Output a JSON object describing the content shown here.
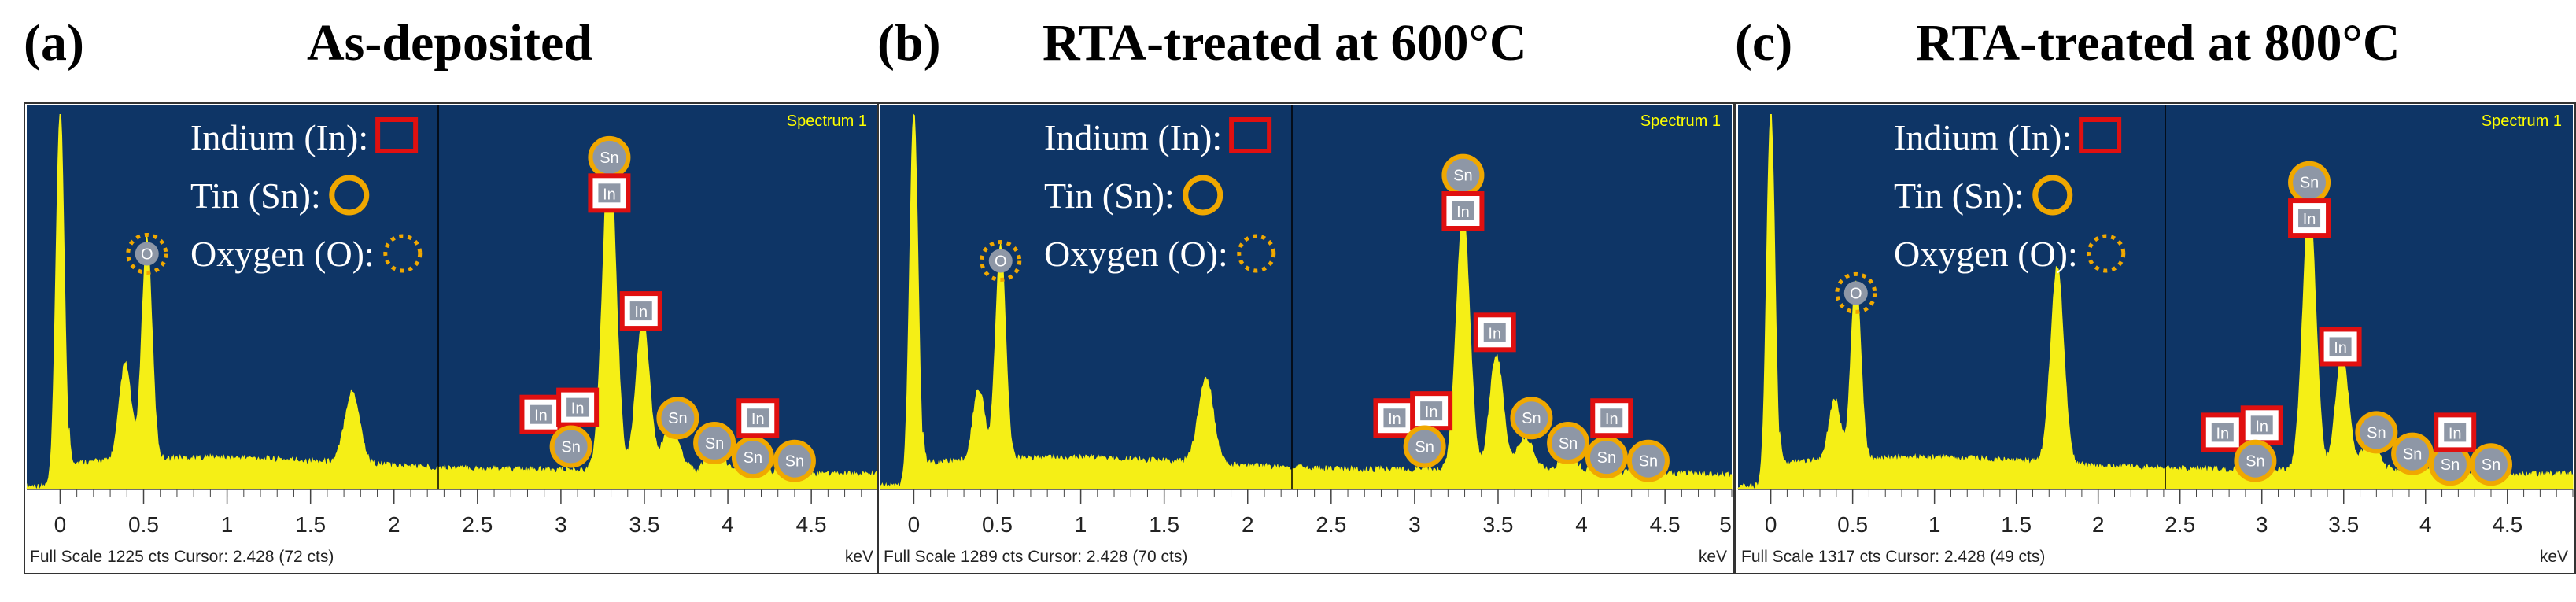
{
  "legend": {
    "indium": "Indium (In):",
    "tin": "Tin (Sn):",
    "oxygen": "Oxygen (O):"
  },
  "colors": {
    "plot_background": "#0e3566",
    "spectrum_fill": "#f5ef16",
    "indium_marker": "#e01010",
    "tin_marker": "#f0a800",
    "oxygen_marker": "#f0a800",
    "spectrum_label": "#ffff00",
    "cursor_line": "#000000"
  },
  "chart_data": [
    {
      "type": "area",
      "panel_label": "(a)",
      "title": "As-deposited",
      "spectrum_name": "Spectrum 1",
      "xlabel": "keV",
      "xlim": [
        -0.2,
        4.9
      ],
      "x_ticks": [
        "0",
        "0.5",
        "1",
        "1.5",
        "2",
        "2.5",
        "3",
        "3.5",
        "4",
        "4.5"
      ],
      "x_tick_values": [
        0,
        0.5,
        1,
        1.5,
        2,
        2.5,
        3,
        3.5,
        4,
        4.5
      ],
      "cursor_keV": 2.428,
      "status": "Full Scale 1225 cts Cursor: 2.428  (72 cts)",
      "full_scale_cts": 1225,
      "cursor_cts": 72,
      "peaks": [
        {
          "x": 0.0,
          "rel_height": 1.05,
          "width": 0.025
        },
        {
          "x": 0.39,
          "rel_height": 0.27,
          "width": 0.035
        },
        {
          "x": 0.52,
          "rel_height": 0.62,
          "width": 0.03
        },
        {
          "x": 1.75,
          "rel_height": 0.2,
          "width": 0.045
        },
        {
          "x": 3.29,
          "rel_height": 0.9,
          "width": 0.04
        },
        {
          "x": 3.49,
          "rel_height": 0.42,
          "width": 0.04
        },
        {
          "x": 3.66,
          "rel_height": 0.12,
          "width": 0.05
        },
        {
          "x": 3.92,
          "rel_height": 0.08,
          "width": 0.05
        },
        {
          "x": 4.13,
          "rel_height": 0.07,
          "width": 0.05
        },
        {
          "x": 4.38,
          "rel_height": 0.05,
          "width": 0.05
        }
      ],
      "markers": [
        {
          "el": "Sn",
          "kind": "circle",
          "x": 3.29,
          "rel_y": 0.93
        },
        {
          "el": "In",
          "kind": "square",
          "x": 3.29,
          "rel_y": 0.83
        },
        {
          "el": "In",
          "kind": "square",
          "x": 3.48,
          "rel_y": 0.5
        },
        {
          "el": "O",
          "kind": "dashed",
          "x": 0.52,
          "rel_y": 0.66
        },
        {
          "el": "In",
          "kind": "square",
          "x": 2.88,
          "rel_y": 0.21
        },
        {
          "el": "In",
          "kind": "square",
          "x": 3.1,
          "rel_y": 0.23
        },
        {
          "el": "Sn",
          "kind": "circle",
          "x": 3.06,
          "rel_y": 0.12
        },
        {
          "el": "Sn",
          "kind": "circle",
          "x": 3.7,
          "rel_y": 0.2
        },
        {
          "el": "Sn",
          "kind": "circle",
          "x": 3.92,
          "rel_y": 0.13
        },
        {
          "el": "Sn",
          "kind": "circle",
          "x": 4.15,
          "rel_y": 0.09
        },
        {
          "el": "In",
          "kind": "square",
          "x": 4.18,
          "rel_y": 0.2
        },
        {
          "el": "Sn",
          "kind": "circle",
          "x": 4.4,
          "rel_y": 0.08
        }
      ]
    },
    {
      "type": "area",
      "panel_label": "(b)",
      "title": "RTA-treated at 600°C",
      "spectrum_name": "Spectrum 1",
      "xlabel": "keV",
      "xlim": [
        -0.2,
        4.9
      ],
      "x_ticks": [
        "0",
        "0.5",
        "1",
        "1.5",
        "2",
        "2.5",
        "3",
        "3.5",
        "4",
        "4.5",
        "5"
      ],
      "x_tick_values": [
        0,
        0.5,
        1,
        1.5,
        2,
        2.5,
        3,
        3.5,
        4,
        4.5,
        5
      ],
      "cursor_keV": 2.428,
      "status": "Full Scale 1289 cts Cursor: 2.428  (70 cts)",
      "full_scale_cts": 1289,
      "cursor_cts": 70,
      "peaks": [
        {
          "x": 0.0,
          "rel_height": 1.05,
          "width": 0.025
        },
        {
          "x": 0.39,
          "rel_height": 0.2,
          "width": 0.035
        },
        {
          "x": 0.52,
          "rel_height": 0.6,
          "width": 0.03
        },
        {
          "x": 1.75,
          "rel_height": 0.24,
          "width": 0.045
        },
        {
          "x": 3.29,
          "rel_height": 0.72,
          "width": 0.04
        },
        {
          "x": 3.49,
          "rel_height": 0.32,
          "width": 0.04
        },
        {
          "x": 3.66,
          "rel_height": 0.09,
          "width": 0.05
        },
        {
          "x": 3.92,
          "rel_height": 0.06,
          "width": 0.05
        },
        {
          "x": 4.13,
          "rel_height": 0.05,
          "width": 0.05
        },
        {
          "x": 4.38,
          "rel_height": 0.04,
          "width": 0.05
        }
      ],
      "markers": [
        {
          "el": "Sn",
          "kind": "circle",
          "x": 3.29,
          "rel_y": 0.88
        },
        {
          "el": "In",
          "kind": "square",
          "x": 3.29,
          "rel_y": 0.78
        },
        {
          "el": "In",
          "kind": "square",
          "x": 3.48,
          "rel_y": 0.44
        },
        {
          "el": "O",
          "kind": "dashed",
          "x": 0.52,
          "rel_y": 0.64
        },
        {
          "el": "In",
          "kind": "square",
          "x": 2.88,
          "rel_y": 0.2
        },
        {
          "el": "In",
          "kind": "square",
          "x": 3.1,
          "rel_y": 0.22
        },
        {
          "el": "Sn",
          "kind": "circle",
          "x": 3.06,
          "rel_y": 0.12
        },
        {
          "el": "Sn",
          "kind": "circle",
          "x": 3.7,
          "rel_y": 0.2
        },
        {
          "el": "Sn",
          "kind": "circle",
          "x": 3.92,
          "rel_y": 0.13
        },
        {
          "el": "Sn",
          "kind": "circle",
          "x": 4.15,
          "rel_y": 0.09
        },
        {
          "el": "In",
          "kind": "square",
          "x": 4.18,
          "rel_y": 0.2
        },
        {
          "el": "Sn",
          "kind": "circle",
          "x": 4.4,
          "rel_y": 0.08
        }
      ]
    },
    {
      "type": "area",
      "panel_label": "(c)",
      "title": "RTA-treated at 800°C",
      "spectrum_name": "Spectrum 1",
      "xlabel": "keV",
      "xlim": [
        -0.2,
        4.9
      ],
      "x_ticks": [
        "0",
        "0.5",
        "1",
        "1.5",
        "2",
        "2.5",
        "3",
        "3.5",
        "4",
        "4.5"
      ],
      "x_tick_values": [
        0,
        0.5,
        1,
        1.5,
        2,
        2.5,
        3,
        3.5,
        4,
        4.5
      ],
      "cursor_keV": 2.428,
      "status": "Full Scale 1317 cts Cursor: 2.428  (49 cts)",
      "full_scale_cts": 1317,
      "cursor_cts": 49,
      "peaks": [
        {
          "x": 0.0,
          "rel_height": 1.05,
          "width": 0.025
        },
        {
          "x": 0.39,
          "rel_height": 0.17,
          "width": 0.035
        },
        {
          "x": 0.52,
          "rel_height": 0.5,
          "width": 0.03
        },
        {
          "x": 1.75,
          "rel_height": 0.55,
          "width": 0.04
        },
        {
          "x": 3.29,
          "rel_height": 0.75,
          "width": 0.04
        },
        {
          "x": 3.49,
          "rel_height": 0.32,
          "width": 0.04
        },
        {
          "x": 3.66,
          "rel_height": 0.08,
          "width": 0.05
        },
        {
          "x": 3.92,
          "rel_height": 0.05,
          "width": 0.05
        },
        {
          "x": 4.13,
          "rel_height": 0.04,
          "width": 0.05
        },
        {
          "x": 4.38,
          "rel_height": 0.03,
          "width": 0.05
        }
      ],
      "markers": [
        {
          "el": "Sn",
          "kind": "circle",
          "x": 3.29,
          "rel_y": 0.86
        },
        {
          "el": "In",
          "kind": "square",
          "x": 3.29,
          "rel_y": 0.76
        },
        {
          "el": "In",
          "kind": "square",
          "x": 3.48,
          "rel_y": 0.4
        },
        {
          "el": "O",
          "kind": "dashed",
          "x": 0.52,
          "rel_y": 0.55
        },
        {
          "el": "In",
          "kind": "square",
          "x": 2.76,
          "rel_y": 0.16
        },
        {
          "el": "In",
          "kind": "square",
          "x": 3.0,
          "rel_y": 0.18
        },
        {
          "el": "Sn",
          "kind": "circle",
          "x": 2.96,
          "rel_y": 0.08
        },
        {
          "el": "Sn",
          "kind": "circle",
          "x": 3.7,
          "rel_y": 0.16
        },
        {
          "el": "Sn",
          "kind": "circle",
          "x": 3.92,
          "rel_y": 0.1
        },
        {
          "el": "Sn",
          "kind": "circle",
          "x": 4.15,
          "rel_y": 0.07
        },
        {
          "el": "In",
          "kind": "square",
          "x": 4.18,
          "rel_y": 0.16
        },
        {
          "el": "Sn",
          "kind": "circle",
          "x": 4.4,
          "rel_y": 0.07
        }
      ]
    }
  ]
}
